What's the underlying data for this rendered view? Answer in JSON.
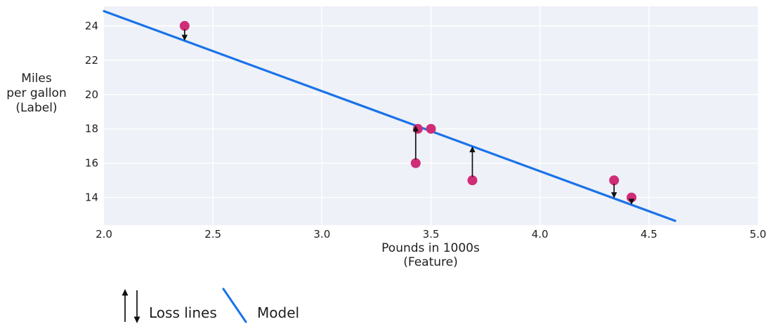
{
  "chart_data": {
    "type": "scatter",
    "xlabel_lines": [
      "Pounds in 1000s",
      "(Feature)"
    ],
    "ylabel_lines": [
      "Miles",
      "per gallon",
      "(Label)"
    ],
    "xlim": [
      2.0,
      5.0
    ],
    "ylim": [
      12.39,
      25.14
    ],
    "x_ticks": [
      2.0,
      2.5,
      3.0,
      3.5,
      4.0,
      4.5,
      5.0
    ],
    "x_tick_labels": [
      "2.0",
      "2.5",
      "3.0",
      "3.5",
      "4.0",
      "4.5",
      "5.0"
    ],
    "y_ticks": [
      14,
      16,
      18,
      20,
      22,
      24
    ],
    "y_tick_labels": [
      "14",
      "16",
      "18",
      "20",
      "22",
      "24"
    ],
    "grid": true,
    "points": [
      {
        "x": 2.37,
        "y": 24
      },
      {
        "x": 3.5,
        "y": 18
      },
      {
        "x": 3.44,
        "y": 18
      },
      {
        "x": 3.43,
        "y": 16
      },
      {
        "x": 3.69,
        "y": 15
      },
      {
        "x": 4.34,
        "y": 15
      },
      {
        "x": 4.42,
        "y": 14
      }
    ],
    "model_line": {
      "x1": 2.0,
      "y1": 24.86,
      "x2": 4.62,
      "y2": 12.64
    },
    "loss_lines": [
      {
        "x": 2.37,
        "from": 24,
        "to": 23.13
      },
      {
        "x": 3.43,
        "from": 16,
        "to": 18.2
      },
      {
        "x": 3.69,
        "from": 15,
        "to": 16.98
      },
      {
        "x": 4.34,
        "from": 15,
        "to": 13.96
      },
      {
        "x": 4.42,
        "from": 14,
        "to": 13.58
      }
    ],
    "colors": {
      "point": "#d02d77",
      "model": "#1a73e8",
      "loss": "#111111",
      "plot_bg": "#eef1f7",
      "grid": "#ffffff",
      "text": "#1f1f1f"
    },
    "legend_position": "bottom-left"
  },
  "legend": {
    "loss_label": "Loss lines",
    "model_label": "Model"
  }
}
